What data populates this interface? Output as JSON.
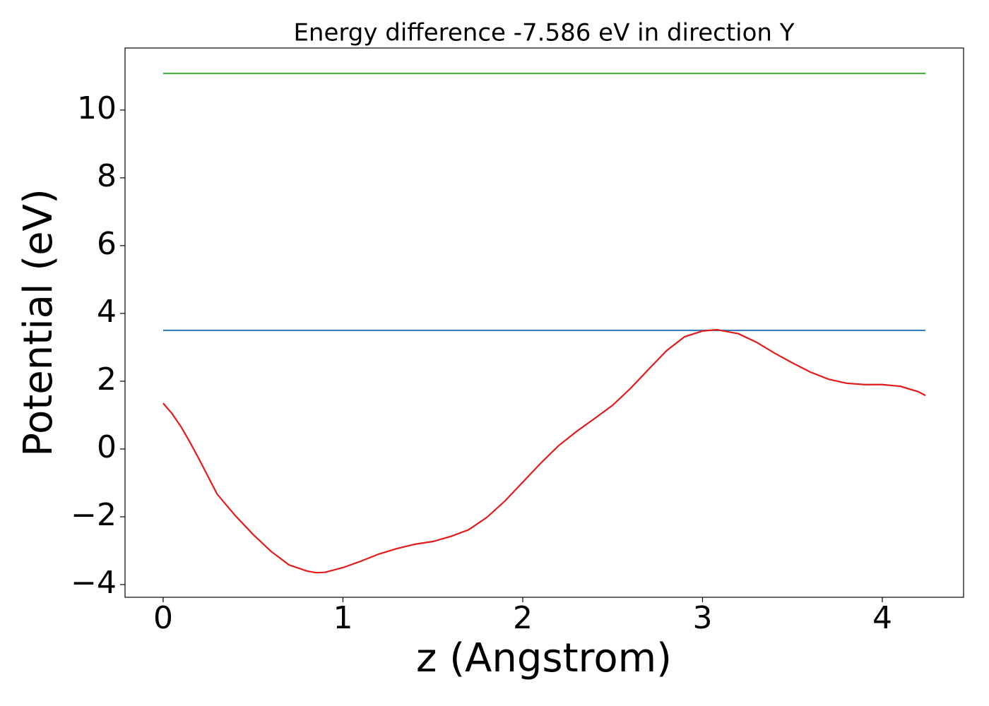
{
  "chart_data": {
    "type": "line",
    "title": "Energy difference -7.586 eV in direction Y",
    "x_label": "z (Angstrom)",
    "y_label": "Potential (eV)",
    "xlim": [
      -0.212,
      4.452
    ],
    "ylim": [
      -4.375,
      11.83
    ],
    "xticks": [
      0,
      1,
      2,
      3,
      4
    ],
    "yticks": [
      {
        "value": -4,
        "label": "−4"
      },
      {
        "value": -2,
        "label": "−2"
      },
      0,
      2,
      4,
      6,
      8,
      10
    ],
    "series": [
      {
        "color": "#4daf4a",
        "x": [
          0,
          4.24
        ],
        "values": [
          11.08,
          11.08
        ]
      },
      {
        "color": "#377eb8",
        "x": [
          0,
          4.24
        ],
        "values": [
          3.5,
          3.5
        ]
      },
      {
        "color": "#e31a1c",
        "x": [
          0,
          0.05,
          0.1,
          0.15,
          0.2,
          0.3,
          0.4,
          0.5,
          0.6,
          0.7,
          0.8,
          0.85,
          0.9,
          1.0,
          1.1,
          1.2,
          1.3,
          1.4,
          1.5,
          1.6,
          1.7,
          1.8,
          1.9,
          2.0,
          2.1,
          2.2,
          2.3,
          2.4,
          2.5,
          2.6,
          2.7,
          2.8,
          2.9,
          3.0,
          3.08,
          3.2,
          3.3,
          3.4,
          3.5,
          3.6,
          3.7,
          3.8,
          3.9,
          4.0,
          4.1,
          4.2,
          4.24
        ],
        "values": [
          1.35,
          1.04,
          0.65,
          0.19,
          -0.3,
          -1.33,
          -1.96,
          -2.52,
          -3.02,
          -3.42,
          -3.6,
          -3.65,
          -3.64,
          -3.5,
          -3.31,
          -3.1,
          -2.94,
          -2.81,
          -2.73,
          -2.58,
          -2.38,
          -2.02,
          -1.54,
          -0.98,
          -0.42,
          0.1,
          0.52,
          0.9,
          1.29,
          1.79,
          2.35,
          2.9,
          3.31,
          3.48,
          3.52,
          3.4,
          3.15,
          2.83,
          2.54,
          2.27,
          2.06,
          1.94,
          1.9,
          1.9,
          1.85,
          1.69,
          1.58
        ]
      }
    ]
  }
}
